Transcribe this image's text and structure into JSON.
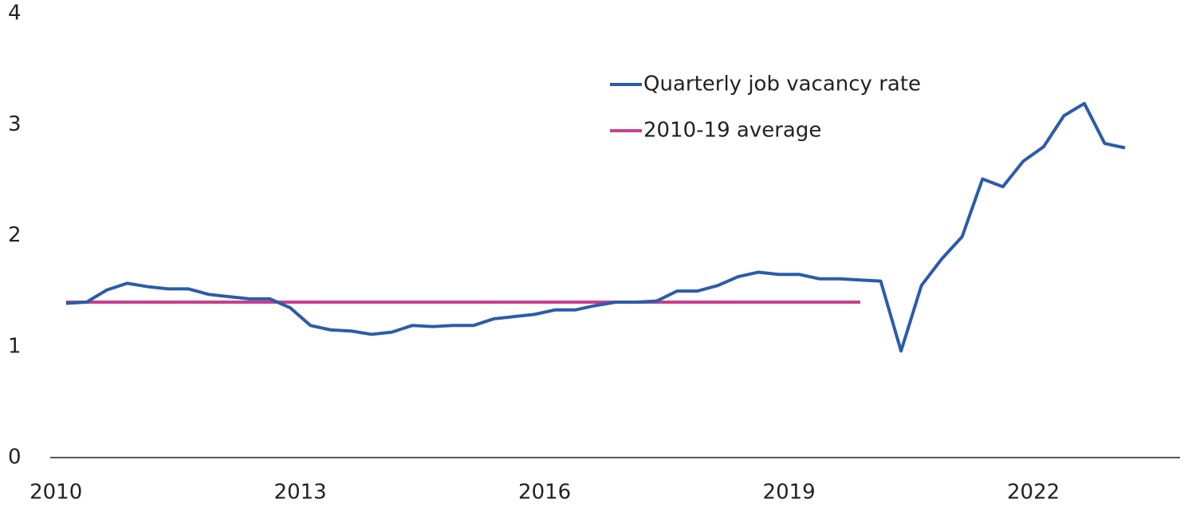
{
  "chart_data": {
    "type": "line",
    "x": [
      2010.125,
      2010.375,
      2010.625,
      2010.875,
      2011.125,
      2011.375,
      2011.625,
      2011.875,
      2012.125,
      2012.375,
      2012.625,
      2012.875,
      2013.125,
      2013.375,
      2013.625,
      2013.875,
      2014.125,
      2014.375,
      2014.625,
      2014.875,
      2015.125,
      2015.375,
      2015.625,
      2015.875,
      2016.125,
      2016.375,
      2016.625,
      2016.875,
      2017.125,
      2017.375,
      2017.625,
      2017.875,
      2018.125,
      2018.375,
      2018.625,
      2018.875,
      2019.125,
      2019.375,
      2019.625,
      2019.875,
      2020.125,
      2020.375,
      2020.625,
      2020.875,
      2021.125,
      2021.375,
      2021.625,
      2021.875,
      2022.125,
      2022.375,
      2022.625,
      2022.875,
      2023.125
    ],
    "series": [
      {
        "name": "Quarterly job vacancy rate",
        "color": "#2a5caa",
        "values": [
          1.39,
          1.4,
          1.51,
          1.57,
          1.54,
          1.52,
          1.52,
          1.47,
          1.45,
          1.43,
          1.43,
          1.35,
          1.19,
          1.15,
          1.14,
          1.11,
          1.13,
          1.19,
          1.18,
          1.19,
          1.19,
          1.25,
          1.27,
          1.29,
          1.33,
          1.33,
          1.37,
          1.4,
          1.4,
          1.41,
          1.5,
          1.5,
          1.55,
          1.63,
          1.67,
          1.65,
          1.65,
          1.61,
          1.61,
          1.6,
          1.59,
          0.96,
          1.55,
          1.79,
          1.99,
          2.51,
          2.44,
          2.67,
          2.8,
          3.08,
          3.19,
          2.83,
          2.79
        ]
      },
      {
        "name": "2010-19 average",
        "color": "#c8408c",
        "values": [
          1.4,
          1.4,
          1.4,
          1.4,
          1.4,
          1.4,
          1.4,
          1.4,
          1.4,
          1.4,
          1.4,
          1.4,
          1.4,
          1.4,
          1.4,
          1.4,
          1.4,
          1.4,
          1.4,
          1.4,
          1.4,
          1.4,
          1.4,
          1.4,
          1.4,
          1.4,
          1.4,
          1.4,
          1.4,
          1.4,
          1.4,
          1.4,
          1.4,
          1.4,
          1.4,
          1.4,
          1.4,
          1.4,
          1.4,
          1.4,
          null,
          null,
          null,
          null,
          null,
          null,
          null,
          null,
          null,
          null,
          null,
          null,
          null
        ]
      }
    ],
    "xlim": [
      2009.93,
      2023.8
    ],
    "xticks": [
      2010,
      2013,
      2016,
      2019,
      2022
    ],
    "ylim": [
      0,
      4
    ],
    "yticks": [
      0,
      1,
      2,
      3,
      4
    ]
  }
}
